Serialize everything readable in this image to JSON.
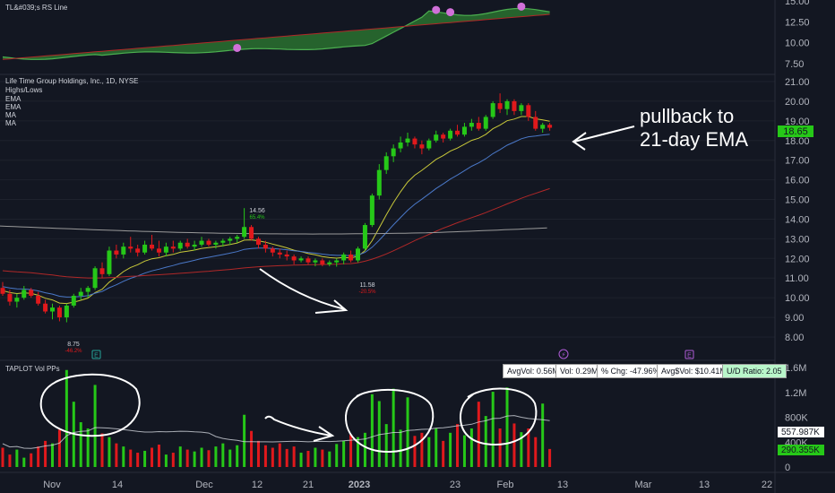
{
  "colors": {
    "bg": "#131722",
    "up": "#26c818",
    "down": "#e0191c",
    "rs_fill": "#2e7d32",
    "rs_line": "#4caf50",
    "ema10": "#c9c93a",
    "ema21": "#4a78c8",
    "ma50": "#b02828",
    "ma200": "#9a9a9a",
    "vol_avg": "#d1d4dc",
    "pink_dot": "#d070d8",
    "price_badge": "#26c818",
    "annot": "#ffffff"
  },
  "rs_panel": {
    "label": "TL&#039;s RS Line",
    "ticks": [
      "15.00",
      "12.50",
      "10.00",
      "7.50"
    ]
  },
  "price_panel": {
    "title": "Life Time Group Holdings, Inc., 1D, NYSE",
    "legend": [
      "Highs/Lows",
      "EMA",
      "EMA",
      "MA",
      "MA"
    ],
    "ticks": [
      "21.00",
      "20.00",
      "19.00",
      "18.00",
      "17.00",
      "16.00",
      "15.00",
      "14.00",
      "13.00",
      "12.00",
      "11.00",
      "10.00",
      "9.00",
      "8.00"
    ],
    "last_price": "18.65",
    "high_label": {
      "price": "14.56",
      "pct": "65.4%"
    },
    "low_label_mid": {
      "price": "11.58",
      "pct": "-20.5%"
    },
    "low_label_left": {
      "price": "8.75",
      "pct": "-46.2%"
    },
    "annotation": [
      "pullback to",
      "21-day EMA"
    ],
    "event_markers": [
      "E",
      "⚡",
      "E"
    ]
  },
  "volume_panel": {
    "label": "TAPLOT Vol PPs",
    "ticks": [
      "1.6M",
      "1.2M",
      "800K",
      "400K",
      "0"
    ],
    "avg_value": "557.987K",
    "last_value": "290.355K",
    "stats": [
      "AvgVol: 0.56M",
      "Vol: 0.29M",
      "% Chg: -47.96%",
      "Avg$Vol: $10.41M",
      "U/D Ratio: 2.05"
    ]
  },
  "x_axis": {
    "labels": [
      "Nov",
      "14",
      "Dec",
      "12",
      "21",
      "2023",
      "23",
      "Feb",
      "13",
      "Mar",
      "13",
      "22"
    ]
  },
  "chart_data": {
    "type": "candlestick",
    "title": "Life Time Group Holdings, Inc., 1D, NYSE",
    "candles": [
      [
        10.5,
        10.8,
        10.1,
        10.2
      ],
      [
        10.2,
        10.4,
        9.6,
        9.8
      ],
      [
        9.8,
        10.2,
        9.5,
        10.0
      ],
      [
        10.0,
        10.6,
        9.9,
        10.4
      ],
      [
        10.4,
        10.5,
        10.0,
        10.1
      ],
      [
        10.1,
        10.3,
        9.6,
        9.7
      ],
      [
        9.7,
        9.9,
        9.2,
        9.3
      ],
      [
        9.3,
        9.7,
        8.9,
        9.5
      ],
      [
        9.5,
        9.6,
        8.8,
        9.0
      ],
      [
        9.0,
        9.7,
        8.75,
        9.6
      ],
      [
        9.6,
        10.2,
        9.5,
        10.1
      ],
      [
        10.1,
        10.5,
        9.9,
        10.3
      ],
      [
        10.3,
        10.6,
        10.0,
        10.5
      ],
      [
        10.5,
        11.6,
        10.4,
        11.5
      ],
      [
        11.5,
        11.8,
        11.0,
        11.2
      ],
      [
        11.2,
        12.6,
        11.1,
        12.4
      ],
      [
        12.4,
        12.7,
        12.0,
        12.2
      ],
      [
        12.2,
        12.8,
        12.0,
        12.6
      ],
      [
        12.6,
        13.1,
        12.3,
        12.5
      ],
      [
        12.5,
        12.7,
        12.1,
        12.3
      ],
      [
        12.3,
        12.9,
        12.2,
        12.7
      ],
      [
        12.7,
        13.2,
        12.4,
        12.5
      ],
      [
        12.5,
        12.9,
        12.1,
        12.3
      ],
      [
        12.3,
        12.8,
        12.1,
        12.6
      ],
      [
        12.6,
        12.9,
        12.3,
        12.5
      ],
      [
        12.5,
        12.9,
        12.4,
        12.8
      ],
      [
        12.8,
        13.0,
        12.5,
        12.6
      ],
      [
        12.6,
        12.9,
        12.4,
        12.7
      ],
      [
        12.7,
        13.1,
        12.6,
        12.9
      ],
      [
        12.9,
        13.0,
        12.6,
        12.7
      ],
      [
        12.7,
        12.9,
        12.5,
        12.8
      ],
      [
        12.8,
        13.0,
        12.6,
        12.9
      ],
      [
        12.9,
        13.1,
        12.7,
        13.0
      ],
      [
        13.0,
        13.2,
        12.8,
        13.1
      ],
      [
        13.1,
        14.56,
        13.0,
        13.6
      ],
      [
        13.6,
        13.7,
        12.9,
        13.0
      ],
      [
        13.0,
        13.1,
        12.5,
        12.7
      ],
      [
        12.7,
        12.9,
        12.3,
        12.5
      ],
      [
        12.5,
        12.6,
        12.1,
        12.3
      ],
      [
        12.3,
        12.5,
        12.0,
        12.2
      ],
      [
        12.2,
        12.4,
        11.9,
        12.1
      ],
      [
        12.1,
        12.2,
        11.7,
        11.9
      ],
      [
        11.9,
        12.1,
        11.8,
        12.0
      ],
      [
        12.0,
        12.1,
        11.7,
        11.8
      ],
      [
        11.8,
        12.0,
        11.6,
        11.9
      ],
      [
        11.9,
        12.0,
        11.6,
        11.7
      ],
      [
        11.7,
        11.9,
        11.6,
        11.8
      ],
      [
        11.8,
        12.0,
        11.58,
        11.9
      ],
      [
        11.9,
        12.3,
        11.7,
        12.2
      ],
      [
        12.2,
        12.4,
        11.8,
        11.9
      ],
      [
        11.9,
        12.6,
        11.8,
        12.5
      ],
      [
        12.5,
        13.8,
        12.4,
        13.7
      ],
      [
        13.7,
        15.3,
        13.6,
        15.2
      ],
      [
        15.2,
        16.8,
        15.0,
        16.5
      ],
      [
        16.5,
        17.4,
        16.3,
        17.2
      ],
      [
        17.2,
        17.8,
        16.9,
        17.6
      ],
      [
        17.6,
        18.2,
        17.4,
        17.9
      ],
      [
        17.9,
        18.4,
        17.7,
        18.1
      ],
      [
        18.1,
        18.2,
        17.6,
        17.8
      ],
      [
        17.8,
        18.0,
        17.3,
        17.6
      ],
      [
        17.6,
        18.1,
        17.5,
        18.0
      ],
      [
        18.0,
        18.5,
        17.9,
        18.3
      ],
      [
        18.3,
        18.4,
        17.9,
        18.1
      ],
      [
        18.1,
        18.6,
        18.0,
        18.5
      ],
      [
        18.5,
        18.8,
        18.2,
        18.3
      ],
      [
        18.3,
        18.9,
        18.2,
        18.7
      ],
      [
        18.7,
        19.1,
        18.5,
        18.9
      ],
      [
        18.9,
        19.2,
        18.5,
        18.6
      ],
      [
        18.6,
        19.3,
        18.5,
        19.2
      ],
      [
        19.2,
        20.0,
        19.1,
        19.9
      ],
      [
        19.9,
        20.4,
        19.4,
        19.6
      ],
      [
        19.6,
        20.1,
        19.3,
        20.0
      ],
      [
        20.0,
        20.1,
        19.3,
        19.5
      ],
      [
        19.5,
        19.9,
        19.3,
        19.8
      ],
      [
        19.8,
        19.9,
        19.0,
        19.2
      ],
      [
        19.2,
        19.5,
        18.5,
        18.6
      ],
      [
        18.6,
        18.9,
        18.4,
        18.8
      ],
      [
        18.8,
        18.9,
        18.5,
        18.65
      ]
    ],
    "volumes": [
      310,
      200,
      280,
      150,
      220,
      330,
      420,
      380,
      600,
      1560,
      1050,
      720,
      620,
      1320,
      540,
      480,
      380,
      330,
      280,
      230,
      260,
      310,
      360,
      200,
      230,
      330,
      280,
      250,
      310,
      270,
      330,
      380,
      280,
      350,
      840,
      580,
      420,
      350,
      310,
      380,
      290,
      330,
      230,
      260,
      310,
      280,
      250,
      370,
      420,
      520,
      480,
      550,
      1170,
      1060,
      690,
      1260,
      600,
      1120,
      500,
      550,
      480,
      620,
      420,
      550,
      690,
      510,
      620,
      1050,
      820,
      1210,
      620,
      1280,
      700,
      560,
      620,
      480,
      1020,
      290
    ],
    "y_range": [
      7.7,
      21.4
    ],
    "volume_range": [
      0,
      1600
    ],
    "marked_levels": {
      "high": 14.56,
      "low_mid": 11.58,
      "low_left": 8.75,
      "last": 18.65
    }
  }
}
